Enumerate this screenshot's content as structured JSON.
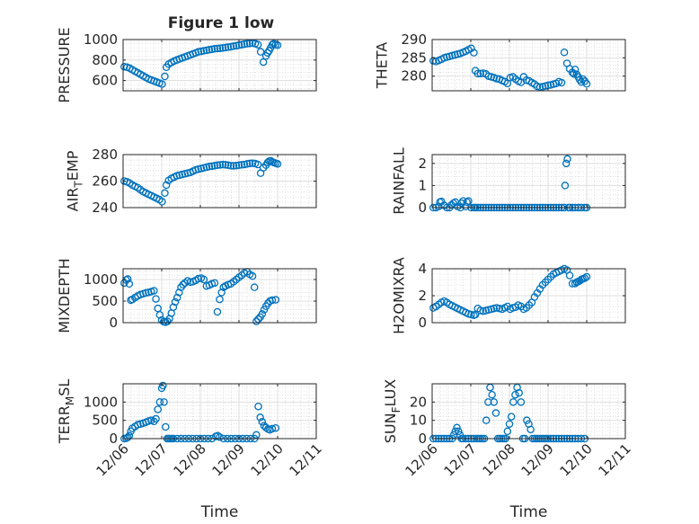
{
  "figure_title": "Figure 1 low",
  "colors": {
    "marker": "#0072BD",
    "axis": "#262626",
    "grid_major": "#dfdfdf",
    "grid_minor": "#cfcfcf"
  },
  "x_tick_labels": [
    "12/06",
    "12/07",
    "12/08",
    "12/09",
    "12/10",
    "12/11"
  ],
  "chart_data": [
    {
      "id": "pressure",
      "type": "scatter",
      "ylabel": "PRESSURE",
      "title": "Figure 1 low",
      "xlim": [
        0,
        5
      ],
      "ylim": [
        500,
        1000
      ],
      "yticks": [
        600,
        800,
        1000
      ],
      "grid": true,
      "show_x_ticklabels": false,
      "xlabel": "",
      "x": [
        0.03,
        0.1,
        0.17,
        0.24,
        0.31,
        0.38,
        0.45,
        0.52,
        0.59,
        0.66,
        0.73,
        0.8,
        0.87,
        0.94,
        1.01,
        1.08,
        1.12,
        1.18,
        1.25,
        1.32,
        1.39,
        1.46,
        1.53,
        1.6,
        1.67,
        1.74,
        1.81,
        1.88,
        1.95,
        2.02,
        2.09,
        2.16,
        2.23,
        2.3,
        2.37,
        2.44,
        2.51,
        2.58,
        2.65,
        2.72,
        2.79,
        2.86,
        2.93,
        3.0,
        3.07,
        3.14,
        3.21,
        3.28,
        3.35,
        3.42,
        3.49,
        3.56,
        3.63,
        3.7,
        3.74,
        3.78,
        3.82,
        3.86,
        3.9,
        3.95,
        4.0
      ],
      "y": [
        735,
        730,
        720,
        705,
        690,
        675,
        660,
        645,
        630,
        615,
        605,
        595,
        585,
        575,
        565,
        640,
        730,
        760,
        775,
        790,
        800,
        810,
        820,
        830,
        840,
        850,
        860,
        870,
        880,
        885,
        890,
        895,
        900,
        905,
        910,
        912,
        915,
        918,
        922,
        926,
        930,
        935,
        940,
        945,
        950,
        955,
        960,
        962,
        965,
        960,
        950,
        880,
        780,
        840,
        870,
        890,
        920,
        950,
        960,
        950,
        945
      ]
    },
    {
      "id": "theta",
      "type": "scatter",
      "ylabel": "THETA",
      "xlim": [
        0,
        5
      ],
      "ylim": [
        276,
        290
      ],
      "yticks": [
        280,
        285,
        290
      ],
      "grid": true,
      "show_x_ticklabels": false,
      "xlabel": "",
      "x": [
        0.03,
        0.1,
        0.17,
        0.24,
        0.31,
        0.38,
        0.45,
        0.52,
        0.59,
        0.66,
        0.73,
        0.8,
        0.87,
        0.94,
        1.01,
        1.08,
        1.12,
        1.18,
        1.25,
        1.32,
        1.39,
        1.46,
        1.53,
        1.6,
        1.67,
        1.74,
        1.81,
        1.88,
        1.95,
        2.02,
        2.09,
        2.16,
        2.23,
        2.3,
        2.37,
        2.44,
        2.51,
        2.58,
        2.65,
        2.72,
        2.79,
        2.86,
        2.93,
        3.0,
        3.07,
        3.14,
        3.21,
        3.28,
        3.35,
        3.42,
        3.49,
        3.56,
        3.63,
        3.67,
        3.7,
        3.74,
        3.78,
        3.82,
        3.86,
        3.9,
        3.95,
        4.0
      ],
      "y": [
        284.2,
        284.0,
        284.3,
        284.6,
        285.0,
        285.2,
        285.4,
        285.6,
        285.8,
        286.0,
        286.2,
        286.5,
        286.8,
        287.2,
        287.6,
        286.4,
        281.5,
        280.7,
        280.7,
        280.8,
        280.6,
        280.0,
        279.8,
        279.6,
        279.3,
        279.2,
        278.8,
        278.5,
        278.0,
        279.6,
        279.8,
        279.2,
        278.6,
        278.3,
        279.8,
        278.9,
        278.7,
        278.2,
        277.8,
        277.2,
        277.0,
        277.1,
        277.3,
        277.5,
        277.6,
        277.8,
        278.0,
        278.5,
        278.2,
        286.5,
        283.5,
        282.0,
        281.0,
        280.6,
        281.8,
        280.5,
        279.8,
        279.0,
        278.4,
        279.2,
        278.6,
        277.9
      ]
    },
    {
      "id": "air_temp",
      "type": "scatter",
      "ylabel": "AIR_TEMP",
      "xlim": [
        0,
        5
      ],
      "ylim": [
        240,
        280
      ],
      "yticks": [
        240,
        260,
        280
      ],
      "grid": true,
      "show_x_ticklabels": false,
      "xlabel": "",
      "x": [
        0.03,
        0.1,
        0.17,
        0.24,
        0.31,
        0.38,
        0.45,
        0.52,
        0.59,
        0.66,
        0.73,
        0.8,
        0.87,
        0.94,
        1.01,
        1.08,
        1.12,
        1.18,
        1.25,
        1.32,
        1.39,
        1.46,
        1.53,
        1.6,
        1.67,
        1.74,
        1.81,
        1.88,
        1.95,
        2.02,
        2.09,
        2.16,
        2.23,
        2.3,
        2.37,
        2.44,
        2.51,
        2.58,
        2.65,
        2.72,
        2.79,
        2.86,
        2.93,
        3.0,
        3.07,
        3.14,
        3.21,
        3.28,
        3.35,
        3.42,
        3.49,
        3.56,
        3.63,
        3.7,
        3.74,
        3.78,
        3.82,
        3.86,
        3.9,
        3.95,
        4.0
      ],
      "y": [
        260,
        259.5,
        258.5,
        257,
        256,
        255,
        253.5,
        252,
        251,
        250,
        249,
        248,
        247,
        246,
        244.5,
        251,
        257,
        260.5,
        262,
        263,
        264,
        264.5,
        265,
        265.5,
        266,
        266.5,
        267.5,
        268.5,
        269,
        269.5,
        270,
        270.5,
        271,
        271.3,
        271.6,
        272,
        272.2,
        272.5,
        272.3,
        272,
        271.6,
        271.5,
        271.7,
        272,
        272.3,
        272.5,
        273,
        273.3,
        273.5,
        273.2,
        272.5,
        266,
        270,
        272,
        274,
        275,
        275.3,
        274.5,
        274,
        273.5,
        273
      ]
    },
    {
      "id": "rainfall",
      "type": "scatter",
      "ylabel": "RAINFALL",
      "xlim": [
        0,
        5
      ],
      "ylim": [
        0,
        2.4
      ],
      "yticks": [
        0,
        1,
        2
      ],
      "grid": true,
      "show_x_ticklabels": false,
      "xlabel": "",
      "x": [
        0.03,
        0.1,
        0.17,
        0.2,
        0.24,
        0.31,
        0.38,
        0.45,
        0.5,
        0.55,
        0.6,
        0.66,
        0.73,
        0.76,
        0.8,
        0.87,
        0.9,
        0.94,
        1.01,
        1.08,
        1.12,
        1.18,
        1.25,
        1.32,
        1.39,
        1.46,
        1.53,
        1.6,
        1.67,
        1.74,
        1.81,
        1.88,
        1.95,
        2.02,
        2.09,
        2.16,
        2.23,
        2.3,
        2.37,
        2.44,
        2.51,
        2.58,
        2.65,
        2.72,
        2.79,
        2.86,
        2.93,
        3.0,
        3.07,
        3.14,
        3.21,
        3.28,
        3.35,
        3.42,
        3.44,
        3.47,
        3.5,
        3.53,
        3.56,
        3.63,
        3.7,
        3.78,
        3.86,
        3.95,
        4.0
      ],
      "y": [
        0,
        0,
        0.05,
        0.25,
        0.28,
        0.1,
        0,
        0,
        0.12,
        0.2,
        0.25,
        0.05,
        0,
        0.2,
        0.3,
        0.05,
        0.25,
        0.3,
        0,
        0,
        0,
        0,
        0,
        0,
        0,
        0,
        0,
        0,
        0,
        0,
        0,
        0,
        0,
        0,
        0,
        0,
        0,
        0,
        0,
        0,
        0,
        0,
        0,
        0,
        0,
        0,
        0,
        0,
        0,
        0,
        0,
        0,
        0,
        0,
        1.0,
        2.0,
        2.2,
        0,
        0,
        0,
        0,
        0,
        0,
        0,
        0
      ]
    },
    {
      "id": "mixdepth",
      "type": "scatter",
      "ylabel": "MIXDEPTH",
      "xlim": [
        0,
        5
      ],
      "ylim": [
        0,
        1250
      ],
      "yticks": [
        0,
        500,
        1000
      ],
      "grid": true,
      "show_x_ticklabels": false,
      "xlabel": "",
      "x": [
        0.03,
        0.08,
        0.12,
        0.16,
        0.2,
        0.24,
        0.31,
        0.38,
        0.45,
        0.52,
        0.59,
        0.66,
        0.73,
        0.8,
        0.85,
        0.9,
        0.95,
        1.0,
        1.05,
        1.1,
        1.15,
        1.2,
        1.25,
        1.3,
        1.35,
        1.4,
        1.45,
        1.5,
        1.55,
        1.6,
        1.67,
        1.74,
        1.81,
        1.88,
        1.95,
        2.02,
        2.09,
        2.16,
        2.23,
        2.3,
        2.37,
        2.44,
        2.5,
        2.55,
        2.6,
        2.65,
        2.72,
        2.79,
        2.86,
        2.93,
        3.0,
        3.07,
        3.14,
        3.21,
        3.28,
        3.35,
        3.4,
        3.45,
        3.5,
        3.55,
        3.6,
        3.65,
        3.7,
        3.75,
        3.8,
        3.86,
        3.95
      ],
      "y": [
        920,
        990,
        1010,
        900,
        520,
        540,
        580,
        620,
        650,
        670,
        690,
        700,
        720,
        740,
        550,
        330,
        180,
        60,
        20,
        10,
        30,
        90,
        220,
        360,
        480,
        580,
        700,
        820,
        880,
        920,
        970,
        940,
        950,
        980,
        1020,
        1030,
        1000,
        850,
        870,
        900,
        920,
        250,
        540,
        700,
        820,
        850,
        880,
        900,
        950,
        1000,
        1050,
        1100,
        1150,
        1180,
        1120,
        1080,
        820,
        30,
        80,
        130,
        200,
        300,
        380,
        450,
        500,
        520,
        530
      ]
    },
    {
      "id": "h2omixra",
      "type": "scatter",
      "ylabel": "H2OMIXRA",
      "xlim": [
        0,
        5
      ],
      "ylim": [
        0,
        4
      ],
      "yticks": [
        0,
        2,
        4
      ],
      "grid": true,
      "show_x_ticklabels": false,
      "xlabel": "",
      "x": [
        0.03,
        0.1,
        0.17,
        0.24,
        0.31,
        0.38,
        0.45,
        0.52,
        0.59,
        0.66,
        0.73,
        0.8,
        0.87,
        0.94,
        1.01,
        1.08,
        1.12,
        1.18,
        1.25,
        1.32,
        1.39,
        1.46,
        1.53,
        1.6,
        1.67,
        1.74,
        1.81,
        1.88,
        1.95,
        2.02,
        2.09,
        2.16,
        2.23,
        2.3,
        2.37,
        2.44,
        2.51,
        2.58,
        2.65,
        2.72,
        2.79,
        2.86,
        2.93,
        3.0,
        3.07,
        3.14,
        3.21,
        3.28,
        3.35,
        3.42,
        3.49,
        3.56,
        3.63,
        3.7,
        3.74,
        3.78,
        3.82,
        3.86,
        3.9,
        3.95,
        4.0
      ],
      "y": [
        1.1,
        1.2,
        1.35,
        1.5,
        1.6,
        1.5,
        1.35,
        1.25,
        1.15,
        1.05,
        0.95,
        0.85,
        0.75,
        0.65,
        0.6,
        0.55,
        0.6,
        1.05,
        0.9,
        0.85,
        0.9,
        0.95,
        1.0,
        1.05,
        1.1,
        1.05,
        1.0,
        1.1,
        1.2,
        1.0,
        1.1,
        1.15,
        1.3,
        1.2,
        1.0,
        1.1,
        1.3,
        1.5,
        1.9,
        2.2,
        2.5,
        2.8,
        3.0,
        3.2,
        3.4,
        3.6,
        3.7,
        3.8,
        3.9,
        4.0,
        3.9,
        3.5,
        2.9,
        2.9,
        3.0,
        3.05,
        3.1,
        3.2,
        3.25,
        3.3,
        3.4
      ]
    },
    {
      "id": "terr_msl",
      "type": "scatter",
      "ylabel": "TERR_MSL",
      "xlim": [
        0,
        5
      ],
      "ylim": [
        0,
        1500
      ],
      "yticks": [
        0,
        500,
        1000
      ],
      "grid": true,
      "show_x_ticklabels": true,
      "xlabel": "Time",
      "x": [
        0.03,
        0.08,
        0.12,
        0.16,
        0.2,
        0.24,
        0.31,
        0.38,
        0.45,
        0.52,
        0.59,
        0.66,
        0.73,
        0.8,
        0.85,
        0.9,
        0.95,
        1.0,
        1.03,
        1.06,
        1.1,
        1.14,
        1.18,
        1.22,
        1.26,
        1.3,
        1.4,
        1.5,
        1.6,
        1.7,
        1.8,
        1.9,
        2.0,
        2.1,
        2.2,
        2.3,
        2.4,
        2.45,
        2.5,
        2.6,
        2.7,
        2.8,
        2.9,
        3.0,
        3.1,
        3.2,
        3.3,
        3.4,
        3.45,
        3.5,
        3.55,
        3.6,
        3.65,
        3.7,
        3.75,
        3.8,
        3.86,
        3.95
      ],
      "y": [
        0,
        10,
        30,
        80,
        200,
        280,
        330,
        380,
        400,
        420,
        450,
        480,
        500,
        470,
        540,
        800,
        1000,
        1380,
        1450,
        1000,
        320,
        0,
        0,
        0,
        0,
        0,
        0,
        0,
        0,
        0,
        0,
        0,
        0,
        0,
        0,
        0,
        60,
        80,
        40,
        0,
        0,
        0,
        0,
        0,
        0,
        0,
        0,
        0,
        100,
        880,
        580,
        460,
        350,
        300,
        260,
        240,
        270,
        290
      ]
    },
    {
      "id": "sun_flux",
      "type": "scatter",
      "ylabel": "SUN_FLUX",
      "xlim": [
        0,
        5
      ],
      "ylim": [
        0,
        30
      ],
      "yticks": [
        0,
        10,
        20
      ],
      "grid": true,
      "show_x_ticklabels": true,
      "xlabel": "Time",
      "x": [
        0.03,
        0.1,
        0.17,
        0.24,
        0.31,
        0.38,
        0.45,
        0.52,
        0.56,
        0.6,
        0.64,
        0.68,
        0.72,
        0.76,
        0.8,
        0.87,
        0.94,
        1.01,
        1.08,
        1.15,
        1.2,
        1.25,
        1.3,
        1.35,
        1.4,
        1.45,
        1.5,
        1.55,
        1.6,
        1.65,
        1.7,
        1.75,
        1.8,
        1.85,
        1.9,
        1.95,
        2.0,
        2.05,
        2.1,
        2.15,
        2.2,
        2.25,
        2.3,
        2.35,
        2.4,
        2.45,
        2.5,
        2.55,
        2.6,
        2.65,
        2.7,
        2.75,
        2.8,
        2.85,
        2.9,
        2.95,
        3.0,
        3.07,
        3.14,
        3.21,
        3.28,
        3.35,
        3.42,
        3.49,
        3.56,
        3.63,
        3.7,
        3.78,
        3.86,
        3.95
      ],
      "y": [
        0,
        0,
        0,
        0,
        0,
        0,
        0,
        0,
        2,
        4,
        6,
        4,
        2,
        0,
        0,
        0,
        0,
        0,
        0,
        0,
        0,
        0,
        0,
        0,
        10,
        20,
        28,
        24,
        20,
        14,
        0,
        0,
        0,
        0,
        0,
        4,
        8,
        12,
        20,
        24,
        28,
        25,
        20,
        0,
        0,
        10,
        8,
        5,
        0,
        0,
        0,
        0,
        0,
        0,
        0,
        0,
        0,
        0,
        0,
        0,
        0,
        0,
        0,
        0,
        0,
        0,
        0,
        0,
        0,
        0
      ]
    }
  ]
}
